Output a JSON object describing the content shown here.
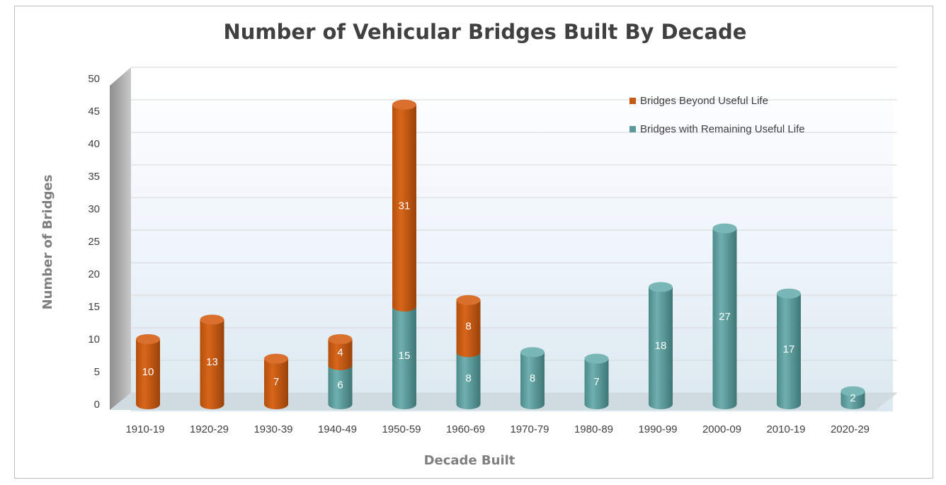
{
  "chart_data": {
    "type": "bar",
    "stacked": true,
    "style": "3d-cylinder",
    "title": "Number of Vehicular Bridges Built By Decade",
    "xlabel": "Decade Built",
    "ylabel": "Number of Bridges",
    "ylim": [
      0,
      50
    ],
    "yticks": [
      0,
      5,
      10,
      15,
      20,
      25,
      30,
      35,
      40,
      45,
      50
    ],
    "grid": true,
    "legend_position": "top-right",
    "categories": [
      "1910-19",
      "1920-29",
      "1930-39",
      "1940-49",
      "1950-59",
      "1960-69",
      "1970-79",
      "1980-89",
      "1990-99",
      "2000-09",
      "2010-19",
      "2020-29"
    ],
    "series": [
      {
        "name": "Bridges with Remaining Useful Life",
        "color": "#5b9a9a",
        "values": [
          0,
          0,
          0,
          6,
          15,
          8,
          8,
          7,
          18,
          27,
          17,
          2
        ]
      },
      {
        "name": "Bridges Beyond Useful Life",
        "color": "#c55a11",
        "values": [
          10,
          13,
          7,
          4,
          31,
          8,
          0,
          0,
          0,
          0,
          0,
          0
        ]
      }
    ],
    "legend_order": [
      1,
      0
    ]
  }
}
